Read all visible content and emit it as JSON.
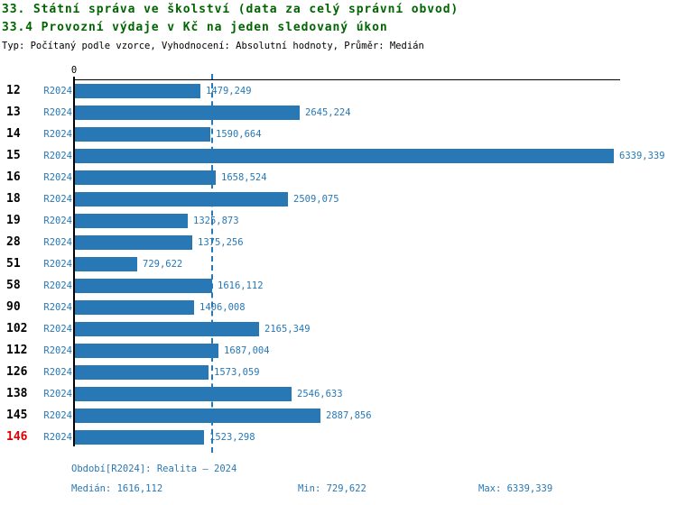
{
  "page": {
    "title": "33. Státní správa ve školství (data za celý správní obvod)",
    "subtitle": "33.4 Provozní výdaje v Kč na jeden sledovaný úkon",
    "meta": "Typ: Počítaný podle vzorce, Vyhodnocení: Absolutní hodnoty, Průměr: Medián"
  },
  "colors": {
    "bar_blue": "#2878b5",
    "title_green": "#006400",
    "highlight_red": "#dd0000",
    "axis_black": "#000000"
  },
  "chart_data": {
    "type": "bar",
    "orientation": "horizontal",
    "series_name": "R2024",
    "categories": [
      "12",
      "13",
      "14",
      "15",
      "16",
      "18",
      "19",
      "28",
      "51",
      "58",
      "90",
      "102",
      "112",
      "126",
      "138",
      "145",
      "146"
    ],
    "values": [
      1479.249,
      2645.224,
      1590.664,
      6339.339,
      1658.524,
      2509.075,
      1325.873,
      1375.256,
      729.622,
      1616.112,
      1406.008,
      2165.349,
      1687.004,
      1573.059,
      2546.633,
      2887.856,
      1523.298
    ],
    "value_labels": [
      "1479,249",
      "2645,224",
      "1590,664",
      "6339,339",
      "1658,524",
      "2509,075",
      "1325,873",
      "1375,256",
      "729,622",
      "1616,112",
      "1406,008",
      "2165,349",
      "1687,004",
      "1573,059",
      "2546,633",
      "2887,856",
      "1523,298"
    ],
    "highlighted_category": "146",
    "axis_zero_label": "0",
    "xlim": [
      0,
      6400
    ],
    "median_value": 1616.112,
    "grid": false,
    "legend_position": "none"
  },
  "footer": {
    "period": "Období[R2024]: Realita – 2024",
    "median": "Medián: 1616,112",
    "min": "Min: 729,622",
    "max": "Max: 6339,339"
  }
}
